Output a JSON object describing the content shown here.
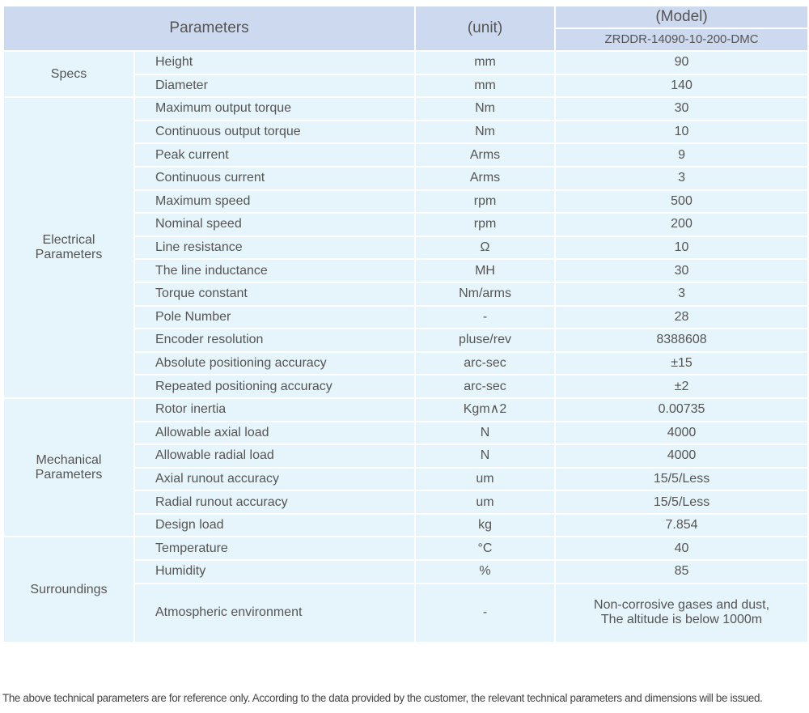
{
  "header": {
    "parameters": "Parameters",
    "unit": "(unit)",
    "model_title": "(Model)",
    "model_name": "ZRDDR-14090-10-200-DMC"
  },
  "groups": [
    {
      "name": "Specs",
      "rows": [
        {
          "param": "Height",
          "unit": "mm",
          "value": "90"
        },
        {
          "param": "Diameter",
          "unit": "mm",
          "value": "140"
        }
      ]
    },
    {
      "name": "Electrical Parameters",
      "rows": [
        {
          "param": "Maximum output torque",
          "unit": "Nm",
          "value": "30"
        },
        {
          "param": "Continuous output torque",
          "unit": "Nm",
          "value": "10"
        },
        {
          "param": "Peak current",
          "unit": "Arms",
          "value": "9"
        },
        {
          "param": "Continuous current",
          "unit": "Arms",
          "value": "3"
        },
        {
          "param": "Maximum speed",
          "unit": "rpm",
          "value": "500"
        },
        {
          "param": "Nominal speed",
          "unit": "rpm",
          "value": "200"
        },
        {
          "param": "Line resistance",
          "unit": "Ω",
          "value": "10"
        },
        {
          "param": "The line inductance",
          "unit": "MH",
          "value": "30"
        },
        {
          "param": "Torque constant",
          "unit": "Nm/arms",
          "value": "3"
        },
        {
          "param": "Pole Number",
          "unit": "-",
          "value": "28"
        },
        {
          "param": "Encoder resolution",
          "unit": "pluse/rev",
          "value": "8388608"
        },
        {
          "param": "Absolute positioning accuracy",
          "unit": "arc-sec",
          "value": "±15"
        },
        {
          "param": "Repeated positioning accuracy",
          "unit": "arc-sec",
          "value": "±2"
        }
      ]
    },
    {
      "name": "Mechanical Parameters",
      "rows": [
        {
          "param": "Rotor inertia",
          "unit": "Kgm∧2",
          "value": "0.00735"
        },
        {
          "param": "Allowable axial load",
          "unit": "N",
          "value": "4000"
        },
        {
          "param": "Allowable radial load",
          "unit": "N",
          "value": "4000"
        },
        {
          "param": "Axial runout accuracy",
          "unit": "um",
          "value": "15/5/Less"
        },
        {
          "param": "Radial runout accuracy",
          "unit": "um",
          "value": "15/5/Less"
        },
        {
          "param": "Design load",
          "unit": "kg",
          "value": "7.854"
        }
      ]
    },
    {
      "name": "Surroundings",
      "rows": [
        {
          "param": "Temperature",
          "unit": "°C",
          "value": "40"
        },
        {
          "param": "Humidity",
          "unit": "%",
          "value": "85"
        },
        {
          "param": "Atmospheric environment",
          "unit": "-",
          "value": "Non-corrosive gases and dust,\nThe altitude is below 1000m"
        }
      ]
    }
  ],
  "footnote": "The above technical parameters are for reference only. According to the data provided by the customer, the relevant technical parameters and dimensions will be issued."
}
